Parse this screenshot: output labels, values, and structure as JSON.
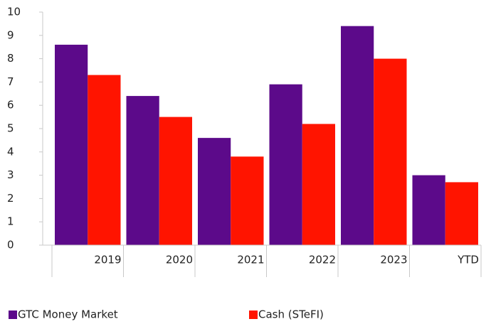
{
  "chart_data": {
    "type": "bar",
    "categories": [
      "2019",
      "2020",
      "2021",
      "2022",
      "2023",
      "YTD"
    ],
    "series": [
      {
        "name": "GTC Money Market",
        "color": "#5c0a8a",
        "values": [
          8.6,
          6.4,
          4.6,
          6.9,
          9.4,
          3.0
        ]
      },
      {
        "name": "Cash (STeFI)",
        "color": "#ff1400",
        "values": [
          7.3,
          5.5,
          3.8,
          5.2,
          8.0,
          2.7
        ]
      }
    ],
    "ylim": [
      0,
      10
    ],
    "yticks": [
      0,
      1,
      2,
      3,
      4,
      5,
      6,
      7,
      8,
      9,
      10
    ],
    "grid": false,
    "legend": "bottom"
  }
}
